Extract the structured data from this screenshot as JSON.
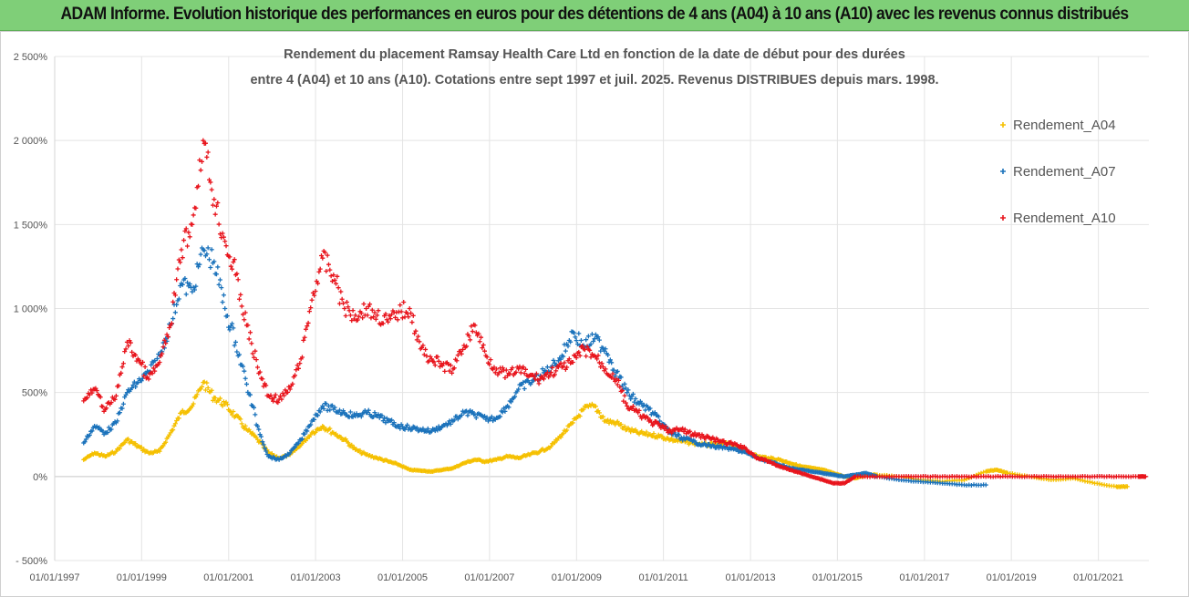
{
  "header": {
    "banner": "ADAM Informe. Evolution historique des performances en euros pour des détentions de 4 ans (A04) à 10 ans (A10) avec les revenus connus distribués"
  },
  "chart_data": {
    "type": "scatter",
    "title_lines": [
      "Rendement du placement Ramsay Health Care Ltd en fonction de la date de début pour des durées",
      "entre 4 (A04) et 10 ans (A10). Cotations entre sept 1997 et juil. 2025. Revenus DISTRIBUES depuis mars. 1998."
    ],
    "xlabel": "",
    "ylabel": "",
    "x_tick_labels": [
      "01/01/1997",
      "01/01/1999",
      "01/01/2001",
      "01/01/2003",
      "01/01/2005",
      "01/01/2007",
      "01/01/2009",
      "01/01/2011",
      "01/01/2013",
      "01/01/2015",
      "01/01/2017",
      "01/01/2019",
      "01/01/2021"
    ],
    "y_tick_labels": [
      "2 500%",
      "2 000%",
      "1 500%",
      "1 000%",
      "500%",
      "0%",
      "- 500%"
    ],
    "xlim": [
      "1997-01-01",
      "2022-03-01"
    ],
    "ylim": [
      -500,
      2500
    ],
    "grid": "vertical and horizontal",
    "legend_position": "right",
    "marker": "plus",
    "series": [
      {
        "name": "Rendement_A04",
        "color": "#f5c000",
        "points": [
          [
            "1997-09-01",
            100
          ],
          [
            "1997-12-01",
            140
          ],
          [
            "1998-03-01",
            120
          ],
          [
            "1998-06-01",
            150
          ],
          [
            "1998-09-01",
            220
          ],
          [
            "1998-12-01",
            180
          ],
          [
            "1999-03-01",
            140
          ],
          [
            "1999-06-01",
            150
          ],
          [
            "1999-09-01",
            260
          ],
          [
            "1999-12-01",
            380
          ],
          [
            "2000-03-01",
            420
          ],
          [
            "2000-06-01",
            560
          ],
          [
            "2000-09-01",
            470
          ],
          [
            "2000-12-01",
            430
          ],
          [
            "2001-03-01",
            360
          ],
          [
            "2001-06-01",
            280
          ],
          [
            "2001-09-01",
            220
          ],
          [
            "2001-12-01",
            140
          ],
          [
            "2002-03-01",
            110
          ],
          [
            "2002-06-01",
            130
          ],
          [
            "2002-09-01",
            190
          ],
          [
            "2002-12-01",
            260
          ],
          [
            "2003-03-01",
            300
          ],
          [
            "2003-06-01",
            260
          ],
          [
            "2003-09-01",
            220
          ],
          [
            "2003-12-01",
            160
          ],
          [
            "2004-03-01",
            130
          ],
          [
            "2004-06-01",
            110
          ],
          [
            "2004-09-01",
            90
          ],
          [
            "2004-12-01",
            70
          ],
          [
            "2005-03-01",
            40
          ],
          [
            "2005-06-01",
            35
          ],
          [
            "2005-09-01",
            30
          ],
          [
            "2005-12-01",
            40
          ],
          [
            "2006-03-01",
            50
          ],
          [
            "2006-06-01",
            80
          ],
          [
            "2006-09-01",
            100
          ],
          [
            "2006-12-01",
            90
          ],
          [
            "2007-03-01",
            100
          ],
          [
            "2007-06-01",
            120
          ],
          [
            "2007-09-01",
            110
          ],
          [
            "2007-12-01",
            130
          ],
          [
            "2008-03-01",
            150
          ],
          [
            "2008-06-01",
            180
          ],
          [
            "2008-09-01",
            250
          ],
          [
            "2008-12-01",
            320
          ],
          [
            "2009-03-01",
            400
          ],
          [
            "2009-06-01",
            420
          ],
          [
            "2009-09-01",
            330
          ],
          [
            "2009-12-01",
            320
          ],
          [
            "2010-03-01",
            280
          ],
          [
            "2010-06-01",
            260
          ],
          [
            "2010-09-01",
            250
          ],
          [
            "2010-12-01",
            240
          ],
          [
            "2011-03-01",
            220
          ],
          [
            "2011-06-01",
            210
          ],
          [
            "2011-09-01",
            200
          ],
          [
            "2011-12-01",
            190
          ],
          [
            "2012-03-01",
            190
          ],
          [
            "2012-06-01",
            200
          ],
          [
            "2012-09-01",
            180
          ],
          [
            "2012-12-01",
            150
          ],
          [
            "2013-03-01",
            120
          ],
          [
            "2013-06-01",
            110
          ],
          [
            "2013-09-01",
            100
          ],
          [
            "2013-12-01",
            80
          ],
          [
            "2014-03-01",
            60
          ],
          [
            "2014-06-01",
            50
          ],
          [
            "2014-09-01",
            40
          ],
          [
            "2014-12-01",
            20
          ],
          [
            "2015-03-01",
            0
          ],
          [
            "2015-06-01",
            -10
          ],
          [
            "2015-09-01",
            10
          ],
          [
            "2015-12-01",
            10
          ],
          [
            "2016-06-01",
            0
          ],
          [
            "2016-12-01",
            -20
          ],
          [
            "2017-06-01",
            -30
          ],
          [
            "2017-12-01",
            -20
          ],
          [
            "2018-06-01",
            30
          ],
          [
            "2018-09-01",
            40
          ],
          [
            "2018-12-01",
            20
          ],
          [
            "2019-06-01",
            0
          ],
          [
            "2019-12-01",
            -20
          ],
          [
            "2020-06-01",
            -10
          ],
          [
            "2020-12-01",
            -40
          ],
          [
            "2021-06-01",
            -60
          ],
          [
            "2021-09-01",
            -60
          ]
        ]
      },
      {
        "name": "Rendement_A07",
        "color": "#1a72bb",
        "points": [
          [
            "1997-09-01",
            200
          ],
          [
            "1997-12-01",
            300
          ],
          [
            "1998-03-01",
            260
          ],
          [
            "1998-06-01",
            320
          ],
          [
            "1998-09-01",
            500
          ],
          [
            "1998-12-01",
            560
          ],
          [
            "1999-03-01",
            620
          ],
          [
            "1999-06-01",
            720
          ],
          [
            "1999-09-01",
            900
          ],
          [
            "1999-12-01",
            1150
          ],
          [
            "2000-03-01",
            1100
          ],
          [
            "2000-06-01",
            1350
          ],
          [
            "2000-09-01",
            1280
          ],
          [
            "2000-12-01",
            1000
          ],
          [
            "2001-03-01",
            800
          ],
          [
            "2001-06-01",
            550
          ],
          [
            "2001-09-01",
            300
          ],
          [
            "2001-12-01",
            120
          ],
          [
            "2002-03-01",
            100
          ],
          [
            "2002-06-01",
            140
          ],
          [
            "2002-09-01",
            220
          ],
          [
            "2002-12-01",
            330
          ],
          [
            "2003-03-01",
            420
          ],
          [
            "2003-06-01",
            400
          ],
          [
            "2003-09-01",
            380
          ],
          [
            "2003-12-01",
            360
          ],
          [
            "2004-03-01",
            380
          ],
          [
            "2004-06-01",
            360
          ],
          [
            "2004-09-01",
            330
          ],
          [
            "2004-12-01",
            300
          ],
          [
            "2005-03-01",
            290
          ],
          [
            "2005-06-01",
            280
          ],
          [
            "2005-09-01",
            270
          ],
          [
            "2005-12-01",
            300
          ],
          [
            "2006-03-01",
            330
          ],
          [
            "2006-06-01",
            380
          ],
          [
            "2006-09-01",
            370
          ],
          [
            "2006-12-01",
            340
          ],
          [
            "2007-03-01",
            350
          ],
          [
            "2007-06-01",
            420
          ],
          [
            "2007-09-01",
            520
          ],
          [
            "2007-12-01",
            560
          ],
          [
            "2008-03-01",
            600
          ],
          [
            "2008-06-01",
            650
          ],
          [
            "2008-09-01",
            720
          ],
          [
            "2008-12-01",
            860
          ],
          [
            "2009-03-01",
            780
          ],
          [
            "2009-06-01",
            820
          ],
          [
            "2009-09-01",
            760
          ],
          [
            "2009-12-01",
            620
          ],
          [
            "2010-03-01",
            500
          ],
          [
            "2010-06-01",
            440
          ],
          [
            "2010-09-01",
            400
          ],
          [
            "2010-12-01",
            330
          ],
          [
            "2011-03-01",
            260
          ],
          [
            "2011-06-01",
            230
          ],
          [
            "2011-09-01",
            210
          ],
          [
            "2011-12-01",
            190
          ],
          [
            "2012-03-01",
            180
          ],
          [
            "2012-06-01",
            170
          ],
          [
            "2012-09-01",
            160
          ],
          [
            "2012-12-01",
            140
          ],
          [
            "2013-03-01",
            110
          ],
          [
            "2013-06-01",
            90
          ],
          [
            "2013-09-01",
            70
          ],
          [
            "2013-12-01",
            50
          ],
          [
            "2014-03-01",
            40
          ],
          [
            "2014-06-01",
            30
          ],
          [
            "2014-09-01",
            20
          ],
          [
            "2014-12-01",
            10
          ],
          [
            "2015-03-01",
            0
          ],
          [
            "2015-06-01",
            10
          ],
          [
            "2015-09-01",
            20
          ],
          [
            "2015-12-01",
            0
          ],
          [
            "2016-06-01",
            -20
          ],
          [
            "2016-12-01",
            -30
          ],
          [
            "2017-06-01",
            -40
          ],
          [
            "2017-12-01",
            -50
          ],
          [
            "2018-06-01",
            -50
          ]
        ]
      },
      {
        "name": "Rendement_A10",
        "color": "#e8141c",
        "points": [
          [
            "1997-09-01",
            450
          ],
          [
            "1997-12-01",
            520
          ],
          [
            "1998-03-01",
            400
          ],
          [
            "1998-06-01",
            480
          ],
          [
            "1998-09-01",
            800
          ],
          [
            "1998-12-01",
            700
          ],
          [
            "1999-03-01",
            580
          ],
          [
            "1999-06-01",
            680
          ],
          [
            "1999-09-01",
            900
          ],
          [
            "1999-12-01",
            1350
          ],
          [
            "2000-03-01",
            1500
          ],
          [
            "2000-06-01",
            2000
          ],
          [
            "2000-09-01",
            1650
          ],
          [
            "2000-12-01",
            1400
          ],
          [
            "2001-03-01",
            1200
          ],
          [
            "2001-06-01",
            900
          ],
          [
            "2001-09-01",
            650
          ],
          [
            "2001-12-01",
            480
          ],
          [
            "2002-03-01",
            460
          ],
          [
            "2002-06-01",
            520
          ],
          [
            "2002-09-01",
            700
          ],
          [
            "2002-12-01",
            1050
          ],
          [
            "2003-03-01",
            1300
          ],
          [
            "2003-06-01",
            1200
          ],
          [
            "2003-09-01",
            1000
          ],
          [
            "2003-12-01",
            960
          ],
          [
            "2004-03-01",
            1000
          ],
          [
            "2004-06-01",
            960
          ],
          [
            "2004-09-01",
            920
          ],
          [
            "2004-12-01",
            980
          ],
          [
            "2005-03-01",
            1000
          ],
          [
            "2005-06-01",
            760
          ],
          [
            "2005-09-01",
            700
          ],
          [
            "2005-12-01",
            660
          ],
          [
            "2006-03-01",
            640
          ],
          [
            "2006-06-01",
            780
          ],
          [
            "2006-09-01",
            900
          ],
          [
            "2006-12-01",
            720
          ],
          [
            "2007-03-01",
            640
          ],
          [
            "2007-06-01",
            600
          ],
          [
            "2007-09-01",
            640
          ],
          [
            "2007-12-01",
            600
          ],
          [
            "2008-03-01",
            580
          ],
          [
            "2008-06-01",
            620
          ],
          [
            "2008-09-01",
            650
          ],
          [
            "2008-12-01",
            680
          ],
          [
            "2009-03-01",
            760
          ],
          [
            "2009-06-01",
            720
          ],
          [
            "2009-09-01",
            640
          ],
          [
            "2009-12-01",
            580
          ],
          [
            "2010-03-01",
            420
          ],
          [
            "2010-06-01",
            380
          ],
          [
            "2010-09-01",
            330
          ],
          [
            "2010-12-01",
            300
          ],
          [
            "2011-03-01",
            270
          ],
          [
            "2011-06-01",
            280
          ],
          [
            "2011-09-01",
            250
          ],
          [
            "2011-12-01",
            240
          ],
          [
            "2012-03-01",
            220
          ],
          [
            "2012-06-01",
            200
          ],
          [
            "2012-09-01",
            190
          ],
          [
            "2012-12-01",
            160
          ],
          [
            "2013-03-01",
            110
          ],
          [
            "2013-06-01",
            90
          ],
          [
            "2013-09-01",
            60
          ],
          [
            "2013-12-01",
            40
          ],
          [
            "2014-03-01",
            20
          ],
          [
            "2014-06-01",
            0
          ],
          [
            "2014-09-01",
            -20
          ],
          [
            "2014-12-01",
            -40
          ],
          [
            "2015-03-01",
            -40
          ],
          [
            "2015-06-01",
            0
          ],
          [
            "2015-12-01",
            0
          ],
          [
            "2016-06-01",
            0
          ],
          [
            "2016-12-01",
            0
          ],
          [
            "2017-06-01",
            0
          ],
          [
            "2017-12-01",
            0
          ],
          [
            "2018-06-01",
            0
          ],
          [
            "2018-12-01",
            0
          ],
          [
            "2019-06-01",
            0
          ],
          [
            "2019-12-01",
            0
          ],
          [
            "2020-06-01",
            0
          ],
          [
            "2020-12-01",
            0
          ],
          [
            "2021-06-01",
            0
          ],
          [
            "2021-12-01",
            0
          ],
          [
            "2022-02-01",
            0
          ]
        ]
      }
    ]
  }
}
